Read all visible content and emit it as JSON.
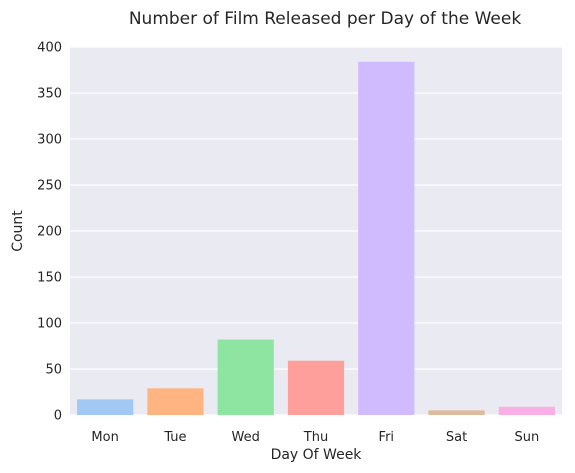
{
  "chart_data": {
    "type": "bar",
    "title": "Number of Film Released per Day of the Week",
    "xlabel": "Day Of Week",
    "ylabel": "Count",
    "categories": [
      "Mon",
      "Tue",
      "Wed",
      "Thu",
      "Fri",
      "Sat",
      "Sun"
    ],
    "values": [
      17,
      29,
      82,
      59,
      384,
      5,
      9
    ],
    "colors": [
      "#a1c9f4",
      "#ffb482",
      "#8de5a1",
      "#ff9f9b",
      "#d0bbff",
      "#debb9b",
      "#fab0e4"
    ],
    "ylim": [
      0,
      400
    ],
    "yticks": [
      0,
      50,
      100,
      150,
      200,
      250,
      300,
      350,
      400
    ],
    "grid": true,
    "background": "#eaeaf2",
    "grid_color": "#ffffff"
  }
}
